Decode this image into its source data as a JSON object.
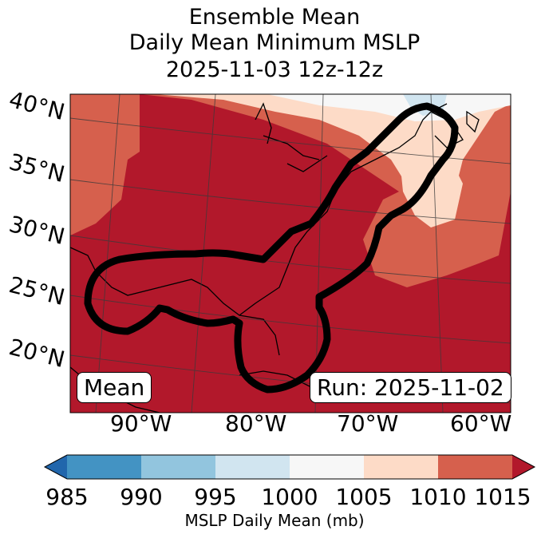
{
  "title": {
    "line1": "Ensemble Mean",
    "line2": "Daily Mean Minimum MSLP",
    "line3": "2025-11-03 12z-12z"
  },
  "map": {
    "latitudes": [
      "40°N",
      "35°N",
      "30°N",
      "25°N",
      "20°N"
    ],
    "longitudes": [
      "90°W",
      "80°W",
      "70°W",
      "60°W"
    ],
    "mean_label": "Mean",
    "run_label": "Run: 2025-11-02",
    "colors": {
      "c985": "#2166ac",
      "c990": "#4393c3",
      "c995": "#92c5de",
      "c1000": "#d1e5f0",
      "c1005": "#f7f7f7",
      "c1010": "#fddbc7",
      "c1015": "#d6604d",
      "cmax": "#b2182b"
    }
  },
  "colorbar": {
    "ticks": [
      "985",
      "990",
      "995",
      "1000",
      "1005",
      "1010",
      "1015"
    ],
    "label": "MSLP Daily Mean (mb)",
    "segment_colors": [
      "#4393c3",
      "#92c5de",
      "#d1e5f0",
      "#f7f7f7",
      "#fddbc7",
      "#d6604d"
    ],
    "under_color": "#2166ac",
    "over_color": "#b2182b"
  }
}
